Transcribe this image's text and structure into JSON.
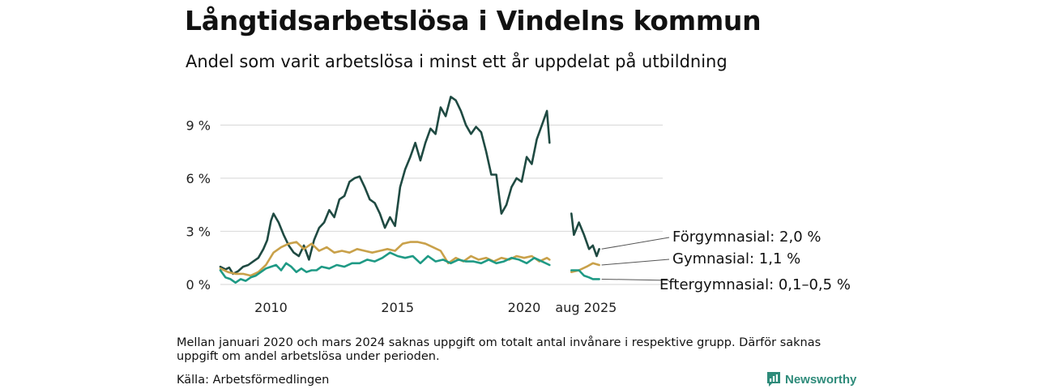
{
  "header": {
    "title": "Långtidsarbetslösa i Vindelns kommun",
    "subtitle": "Andel som varit arbetslösa i minst ett år uppdelat på utbildning"
  },
  "footer": {
    "note": "Mellan januari 2020 och mars 2024 saknas uppgift om totalt antal invånare i respektive grupp. Därför saknas uppgift om andel arbetslösa under perioden.",
    "source": "Källa: Arbetsförmedlingen",
    "brand": "Newsworthy"
  },
  "chart_data": {
    "type": "line",
    "y_unit": "%",
    "ylim": [
      0,
      11
    ],
    "y_ticks": [
      {
        "value": 0,
        "label": "0 %"
      },
      {
        "value": 3,
        "label": "3 %"
      },
      {
        "value": 6,
        "label": "6 %"
      },
      {
        "value": 9,
        "label": "9 %"
      }
    ],
    "x_ticks": [
      {
        "value": 2010,
        "label": "2010"
      },
      {
        "value": 2015,
        "label": "2015"
      },
      {
        "value": 2020,
        "label": "2020"
      },
      {
        "value": 2025.58,
        "label": "aug 2025"
      }
    ],
    "grid": "horizontal",
    "series": [
      {
        "name": "Förgymnasial",
        "end_label": "Förgymnasial: 2,0 %",
        "color": "#1f4a42",
        "segments": [
          [
            [
              2008.0,
              1.0
            ],
            [
              2008.2,
              0.85
            ],
            [
              2008.35,
              0.95
            ],
            [
              2008.5,
              0.6
            ],
            [
              2008.7,
              0.75
            ],
            [
              2008.9,
              1.0
            ],
            [
              2009.1,
              1.1
            ],
            [
              2009.3,
              1.3
            ],
            [
              2009.5,
              1.5
            ],
            [
              2009.7,
              2.0
            ],
            [
              2009.85,
              2.5
            ],
            [
              2010.0,
              3.6
            ],
            [
              2010.1,
              4.0
            ],
            [
              2010.3,
              3.5
            ],
            [
              2010.5,
              2.8
            ],
            [
              2010.7,
              2.2
            ],
            [
              2010.9,
              1.8
            ],
            [
              2011.1,
              1.6
            ],
            [
              2011.3,
              2.2
            ],
            [
              2011.5,
              1.4
            ],
            [
              2011.7,
              2.5
            ],
            [
              2011.9,
              3.2
            ],
            [
              2012.1,
              3.5
            ],
            [
              2012.3,
              4.2
            ],
            [
              2012.5,
              3.8
            ],
            [
              2012.7,
              4.8
            ],
            [
              2012.9,
              5.0
            ],
            [
              2013.1,
              5.8
            ],
            [
              2013.3,
              6.0
            ],
            [
              2013.5,
              6.1
            ],
            [
              2013.7,
              5.5
            ],
            [
              2013.9,
              4.8
            ],
            [
              2014.1,
              4.6
            ],
            [
              2014.3,
              4.0
            ],
            [
              2014.5,
              3.2
            ],
            [
              2014.7,
              3.8
            ],
            [
              2014.9,
              3.3
            ],
            [
              2015.1,
              5.5
            ],
            [
              2015.3,
              6.5
            ],
            [
              2015.5,
              7.2
            ],
            [
              2015.7,
              8.0
            ],
            [
              2015.9,
              7.0
            ],
            [
              2016.1,
              8.0
            ],
            [
              2016.3,
              8.8
            ],
            [
              2016.5,
              8.5
            ],
            [
              2016.7,
              10.0
            ],
            [
              2016.9,
              9.5
            ],
            [
              2017.1,
              10.6
            ],
            [
              2017.3,
              10.4
            ],
            [
              2017.5,
              9.8
            ],
            [
              2017.7,
              9.0
            ],
            [
              2017.9,
              8.5
            ],
            [
              2018.1,
              8.9
            ],
            [
              2018.3,
              8.6
            ],
            [
              2018.5,
              7.5
            ],
            [
              2018.7,
              6.2
            ],
            [
              2018.9,
              6.2
            ],
            [
              2019.1,
              4.0
            ],
            [
              2019.3,
              4.5
            ],
            [
              2019.5,
              5.5
            ],
            [
              2019.7,
              6.0
            ],
            [
              2019.9,
              5.8
            ],
            [
              2020.1,
              7.2
            ],
            [
              2020.3,
              6.8
            ],
            [
              2020.5,
              8.2
            ],
            [
              2020.7,
              9.0
            ],
            [
              2020.9,
              9.8
            ],
            [
              2021.0,
              8.0
            ]
          ],
          [
            [
              2025.0,
              4.0
            ],
            [
              2025.1,
              2.8
            ],
            [
              2025.3,
              3.5
            ],
            [
              2025.5,
              2.8
            ],
            [
              2025.7,
              2.0
            ],
            [
              2025.85,
              2.2
            ],
            [
              2026.0,
              1.6
            ],
            [
              2026.1,
              2.0
            ]
          ]
        ]
      },
      {
        "name": "Gymnasial",
        "end_label": "Gymnasial: 1,1 %",
        "color": "#c9a14a",
        "segments": [
          [
            [
              2008.0,
              0.9
            ],
            [
              2008.3,
              0.7
            ],
            [
              2008.6,
              0.6
            ],
            [
              2008.9,
              0.6
            ],
            [
              2009.2,
              0.5
            ],
            [
              2009.5,
              0.7
            ],
            [
              2009.8,
              1.1
            ],
            [
              2010.1,
              1.8
            ],
            [
              2010.4,
              2.1
            ],
            [
              2010.7,
              2.3
            ],
            [
              2011.0,
              2.4
            ],
            [
              2011.3,
              2.0
            ],
            [
              2011.6,
              2.3
            ],
            [
              2011.9,
              1.9
            ],
            [
              2012.2,
              2.1
            ],
            [
              2012.5,
              1.8
            ],
            [
              2012.8,
              1.9
            ],
            [
              2013.1,
              1.8
            ],
            [
              2013.4,
              2.0
            ],
            [
              2013.7,
              1.9
            ],
            [
              2014.0,
              1.8
            ],
            [
              2014.3,
              1.9
            ],
            [
              2014.6,
              2.0
            ],
            [
              2014.9,
              1.9
            ],
            [
              2015.2,
              2.3
            ],
            [
              2015.5,
              2.4
            ],
            [
              2015.8,
              2.4
            ],
            [
              2016.1,
              2.3
            ],
            [
              2016.4,
              2.1
            ],
            [
              2016.7,
              1.9
            ],
            [
              2017.0,
              1.2
            ],
            [
              2017.3,
              1.5
            ],
            [
              2017.6,
              1.3
            ],
            [
              2017.9,
              1.6
            ],
            [
              2018.2,
              1.4
            ],
            [
              2018.5,
              1.5
            ],
            [
              2018.8,
              1.3
            ],
            [
              2019.1,
              1.5
            ],
            [
              2019.4,
              1.4
            ],
            [
              2019.7,
              1.6
            ],
            [
              2020.0,
              1.5
            ],
            [
              2020.3,
              1.6
            ],
            [
              2020.6,
              1.3
            ],
            [
              2020.9,
              1.5
            ],
            [
              2021.0,
              1.4
            ]
          ],
          [
            [
              2025.0,
              0.7
            ],
            [
              2025.3,
              0.8
            ],
            [
              2025.6,
              1.0
            ],
            [
              2025.85,
              1.2
            ],
            [
              2026.1,
              1.1
            ]
          ]
        ]
      },
      {
        "name": "Eftergymnasial",
        "end_label": "Eftergymnasial: 0,1–0,5 %",
        "color": "#1f9a85",
        "segments": [
          [
            [
              2008.0,
              0.8
            ],
            [
              2008.2,
              0.4
            ],
            [
              2008.4,
              0.3
            ],
            [
              2008.6,
              0.1
            ],
            [
              2008.8,
              0.3
            ],
            [
              2009.0,
              0.2
            ],
            [
              2009.2,
              0.4
            ],
            [
              2009.4,
              0.5
            ],
            [
              2009.6,
              0.7
            ],
            [
              2009.8,
              0.9
            ],
            [
              2010.0,
              1.0
            ],
            [
              2010.2,
              1.1
            ],
            [
              2010.4,
              0.8
            ],
            [
              2010.6,
              1.2
            ],
            [
              2010.8,
              1.0
            ],
            [
              2011.0,
              0.7
            ],
            [
              2011.2,
              0.9
            ],
            [
              2011.4,
              0.7
            ],
            [
              2011.6,
              0.8
            ],
            [
              2011.8,
              0.8
            ],
            [
              2012.0,
              1.0
            ],
            [
              2012.3,
              0.9
            ],
            [
              2012.6,
              1.1
            ],
            [
              2012.9,
              1.0
            ],
            [
              2013.2,
              1.2
            ],
            [
              2013.5,
              1.2
            ],
            [
              2013.8,
              1.4
            ],
            [
              2014.1,
              1.3
            ],
            [
              2014.4,
              1.5
            ],
            [
              2014.7,
              1.8
            ],
            [
              2015.0,
              1.6
            ],
            [
              2015.3,
              1.5
            ],
            [
              2015.6,
              1.6
            ],
            [
              2015.9,
              1.2
            ],
            [
              2016.2,
              1.6
            ],
            [
              2016.5,
              1.3
            ],
            [
              2016.8,
              1.4
            ],
            [
              2017.1,
              1.2
            ],
            [
              2017.4,
              1.4
            ],
            [
              2017.7,
              1.3
            ],
            [
              2018.0,
              1.3
            ],
            [
              2018.3,
              1.2
            ],
            [
              2018.6,
              1.4
            ],
            [
              2018.9,
              1.2
            ],
            [
              2019.2,
              1.3
            ],
            [
              2019.5,
              1.5
            ],
            [
              2019.8,
              1.4
            ],
            [
              2020.1,
              1.2
            ],
            [
              2020.4,
              1.5
            ],
            [
              2020.7,
              1.3
            ],
            [
              2021.0,
              1.1
            ]
          ],
          [
            [
              2025.0,
              0.8
            ],
            [
              2025.3,
              0.8
            ],
            [
              2025.5,
              0.5
            ],
            [
              2025.7,
              0.4
            ],
            [
              2025.85,
              0.3
            ],
            [
              2026.1,
              0.3
            ]
          ]
        ]
      }
    ]
  }
}
